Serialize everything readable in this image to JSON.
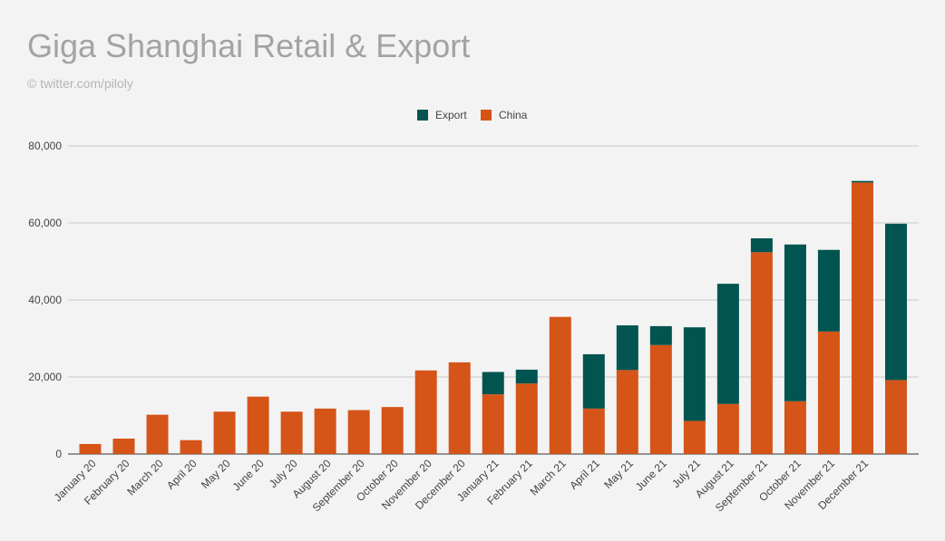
{
  "chart_data": {
    "type": "bar",
    "stacked": true,
    "title": "Giga Shanghai Retail & Export",
    "subtitle": "© twitter.com/piloly",
    "legend_position": "top",
    "grid": true,
    "ylim": [
      0,
      80000
    ],
    "yticks": [
      {
        "value": 0,
        "label": "0"
      },
      {
        "value": 20000,
        "label": "20,000"
      },
      {
        "value": 40000,
        "label": "40,000"
      },
      {
        "value": 60000,
        "label": "60,000"
      },
      {
        "value": 80000,
        "label": "80,000"
      }
    ],
    "categories": [
      "January 20",
      "February 20",
      "March 20",
      "April 20",
      "May 20",
      "June 20",
      "July 20",
      "August 20",
      "September 20",
      "October 20",
      "November 20",
      "December 20",
      "January 21",
      "February 21",
      "March 21",
      "April 21",
      "May 21",
      "June 21",
      "July 21",
      "August 21",
      "September 21",
      "October 21",
      "November 21",
      "December 21",
      ""
    ],
    "series": [
      {
        "name": "China",
        "color": "#d55418",
        "values": [
          2600,
          4000,
          10200,
          3600,
          11000,
          14900,
          11000,
          11800,
          11400,
          12200,
          21700,
          23800,
          15500,
          18300,
          35600,
          11800,
          21800,
          28300,
          8600,
          13000,
          52400,
          13700,
          31800,
          70500,
          19200
        ]
      },
      {
        "name": "Export",
        "color": "#01544f",
        "values": [
          0,
          0,
          0,
          0,
          0,
          0,
          0,
          0,
          0,
          0,
          0,
          0,
          5800,
          3600,
          0,
          14100,
          11600,
          4900,
          24300,
          31200,
          3600,
          40700,
          21200,
          400,
          40600
        ]
      }
    ]
  }
}
